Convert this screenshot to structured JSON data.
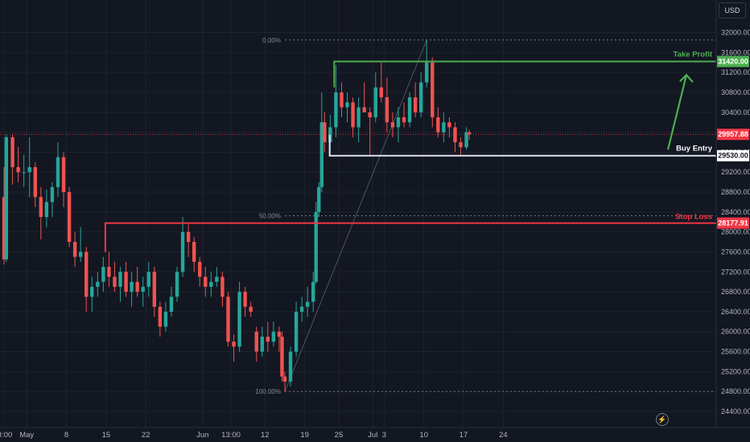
{
  "currency": "USD",
  "icons": {
    "replay": "lightning-icon",
    "arrow": "arrow-up-right-icon"
  },
  "colors": {
    "background": "#131722",
    "grid": "#1e222d",
    "up": "#26a69a",
    "down": "#ef5350",
    "take_profit": "#4caf50",
    "stop_loss": "#f23645",
    "entry": "#ffffff",
    "current": "#f23645",
    "axis_text": "#b2b5be"
  },
  "chart_data": {
    "type": "candlestick",
    "y_axis": {
      "range": [
        24200,
        32400
      ],
      "ticks": [
        24400,
        24800,
        25200,
        25600,
        26000,
        26400,
        26800,
        27200,
        27600,
        28000,
        28400,
        28800,
        29200,
        29600,
        30000,
        30400,
        30800,
        31200,
        31600,
        32000
      ],
      "tick_labels": [
        "24400.00",
        "24800.00",
        "25200.00",
        "25600.00",
        "26000.00",
        "26400.00",
        "26800.00",
        "27200.00",
        "27600.00",
        "28000.00",
        "28400.00",
        "28800.00",
        "29200.00",
        "29600.00",
        "30000.00",
        "30400.00",
        "30800.00",
        "31200.00",
        "31600.00",
        "32000.00"
      ]
    },
    "x_axis": {
      "labels": [
        {
          "label": "3:00",
          "day": 0
        },
        {
          "label": "May",
          "day": 4
        },
        {
          "label": "8",
          "day": 11
        },
        {
          "label": "15",
          "day": 18
        },
        {
          "label": "22",
          "day": 25
        },
        {
          "label": "Jun",
          "day": 35
        },
        {
          "label": "13:00",
          "day": 40
        },
        {
          "label": "12",
          "day": 46
        },
        {
          "label": "19",
          "day": 53
        },
        {
          "label": "25",
          "day": 59
        },
        {
          "label": "Jul",
          "day": 65
        },
        {
          "label": "3",
          "day": 67
        },
        {
          "label": "10",
          "day": 74
        },
        {
          "label": "17",
          "day": 81
        },
        {
          "label": "24",
          "day": 88
        }
      ]
    },
    "candles": [
      {
        "day": 0,
        "open": 28700,
        "high": 29300,
        "low": 27350,
        "close": 27450
      },
      {
        "day": 0.4,
        "open": 27450,
        "high": 29950,
        "low": 27400,
        "close": 29900
      },
      {
        "day": 1.5,
        "open": 29900,
        "high": 29950,
        "low": 28950,
        "close": 29300
      },
      {
        "day": 2.5,
        "open": 29300,
        "high": 29700,
        "low": 29000,
        "close": 29200
      },
      {
        "day": 3.5,
        "open": 29200,
        "high": 29550,
        "low": 28900,
        "close": 29200
      },
      {
        "day": 4.5,
        "open": 29200,
        "high": 29900,
        "low": 28700,
        "close": 29300
      },
      {
        "day": 5.5,
        "open": 29300,
        "high": 29400,
        "low": 28500,
        "close": 28700
      },
      {
        "day": 6.5,
        "open": 28700,
        "high": 28900,
        "low": 27850,
        "close": 28300
      },
      {
        "day": 7.5,
        "open": 28300,
        "high": 28850,
        "low": 28100,
        "close": 28600
      },
      {
        "day": 8.5,
        "open": 28600,
        "high": 29000,
        "low": 28300,
        "close": 28900
      },
      {
        "day": 9.5,
        "open": 28900,
        "high": 29800,
        "low": 28700,
        "close": 29500
      },
      {
        "day": 10.5,
        "open": 29500,
        "high": 29600,
        "low": 28500,
        "close": 28800
      },
      {
        "day": 11.5,
        "open": 28800,
        "high": 28900,
        "low": 27700,
        "close": 27800
      },
      {
        "day": 12.5,
        "open": 27800,
        "high": 28000,
        "low": 27300,
        "close": 27500
      },
      {
        "day": 13.5,
        "open": 27500,
        "high": 28100,
        "low": 27400,
        "close": 27600
      },
      {
        "day": 14.5,
        "open": 27600,
        "high": 27700,
        "low": 26400,
        "close": 26700
      },
      {
        "day": 15.5,
        "open": 26700,
        "high": 27100,
        "low": 26400,
        "close": 26900
      },
      {
        "day": 16.5,
        "open": 26900,
        "high": 27200,
        "low": 26700,
        "close": 27000
      },
      {
        "day": 17.5,
        "open": 27000,
        "high": 27500,
        "low": 26800,
        "close": 27300
      },
      {
        "day": 18.5,
        "open": 27300,
        "high": 27600,
        "low": 26900,
        "close": 27100
      },
      {
        "day": 19.5,
        "open": 27100,
        "high": 27400,
        "low": 26800,
        "close": 26900
      },
      {
        "day": 20.5,
        "open": 26900,
        "high": 27300,
        "low": 26600,
        "close": 27200
      },
      {
        "day": 21.5,
        "open": 27200,
        "high": 27400,
        "low": 26700,
        "close": 26800
      },
      {
        "day": 22.5,
        "open": 26800,
        "high": 27200,
        "low": 26500,
        "close": 27000
      },
      {
        "day": 23.5,
        "open": 27000,
        "high": 27300,
        "low": 26700,
        "close": 26800
      },
      {
        "day": 24.5,
        "open": 26800,
        "high": 27100,
        "low": 26500,
        "close": 26900
      },
      {
        "day": 25.5,
        "open": 26900,
        "high": 27400,
        "low": 26700,
        "close": 27200
      },
      {
        "day": 26.5,
        "open": 27200,
        "high": 27300,
        "low": 26300,
        "close": 26500
      },
      {
        "day": 27.5,
        "open": 26500,
        "high": 26600,
        "low": 25900,
        "close": 26100
      },
      {
        "day": 28.5,
        "open": 26100,
        "high": 26600,
        "low": 26000,
        "close": 26400
      },
      {
        "day": 29.5,
        "open": 26400,
        "high": 26900,
        "low": 26300,
        "close": 26700
      },
      {
        "day": 30.5,
        "open": 26700,
        "high": 27300,
        "low": 26600,
        "close": 27200
      },
      {
        "day": 31.5,
        "open": 27200,
        "high": 28300,
        "low": 27100,
        "close": 28000
      },
      {
        "day": 32.5,
        "open": 28000,
        "high": 28150,
        "low": 27500,
        "close": 27800
      },
      {
        "day": 33.5,
        "open": 27800,
        "high": 27900,
        "low": 27200,
        "close": 27400
      },
      {
        "day": 34.5,
        "open": 27400,
        "high": 27500,
        "low": 26900,
        "close": 27100
      },
      {
        "day": 35.5,
        "open": 27100,
        "high": 27300,
        "low": 26700,
        "close": 26900
      },
      {
        "day": 36.5,
        "open": 26900,
        "high": 27200,
        "low": 26700,
        "close": 27000
      },
      {
        "day": 37.5,
        "open": 27000,
        "high": 27300,
        "low": 26900,
        "close": 27100
      },
      {
        "day": 38.5,
        "open": 27100,
        "high": 27200,
        "low": 26500,
        "close": 26700
      },
      {
        "day": 39.5,
        "open": 26700,
        "high": 26800,
        "low": 25700,
        "close": 25800
      },
      {
        "day": 40.5,
        "open": 25800,
        "high": 25950,
        "low": 25400,
        "close": 25700
      },
      {
        "day": 41.5,
        "open": 25700,
        "high": 27000,
        "low": 25600,
        "close": 26800
      },
      {
        "day": 42.5,
        "open": 26800,
        "high": 26900,
        "low": 26300,
        "close": 26500
      },
      {
        "day": 43.5,
        "open": 26500,
        "high": 26600,
        "low": 26300,
        "close": 26400
      },
      {
        "day": 44.5,
        "open": 26000,
        "high": 26100,
        "low": 25400,
        "close": 25600
      },
      {
        "day": 45.5,
        "open": 25600,
        "high": 26100,
        "low": 25500,
        "close": 25900
      },
      {
        "day": 46.5,
        "open": 25900,
        "high": 26200,
        "low": 25600,
        "close": 25800
      },
      {
        "day": 47.5,
        "open": 25800,
        "high": 26200,
        "low": 25700,
        "close": 26000
      },
      {
        "day": 48.5,
        "open": 26000,
        "high": 26100,
        "low": 25600,
        "close": 25900
      },
      {
        "day": 49.0,
        "open": 25900,
        "high": 26000,
        "low": 25000,
        "close": 25100
      },
      {
        "day": 49.5,
        "open": 25100,
        "high": 25200,
        "low": 24800,
        "close": 25000
      },
      {
        "day": 50.5,
        "open": 25000,
        "high": 25700,
        "low": 24900,
        "close": 25600
      },
      {
        "day": 51.5,
        "open": 25600,
        "high": 26600,
        "low": 25500,
        "close": 26400
      },
      {
        "day": 52.5,
        "open": 26400,
        "high": 26700,
        "low": 26200,
        "close": 26500
      },
      {
        "day": 53.5,
        "open": 26500,
        "high": 26900,
        "low": 26300,
        "close": 26600
      },
      {
        "day": 54.5,
        "open": 26600,
        "high": 27200,
        "low": 26400,
        "close": 27000
      },
      {
        "day": 55.0,
        "open": 27000,
        "high": 28600,
        "low": 26950,
        "close": 28400
      },
      {
        "day": 55.5,
        "open": 28400,
        "high": 29000,
        "low": 28300,
        "close": 28900
      },
      {
        "day": 56.0,
        "open": 28900,
        "high": 30800,
        "low": 28800,
        "close": 30200
      },
      {
        "day": 56.5,
        "open": 30200,
        "high": 30400,
        "low": 29600,
        "close": 29800
      },
      {
        "day": 57.5,
        "open": 29800,
        "high": 30350,
        "low": 29530,
        "close": 30100
      },
      {
        "day": 58.5,
        "open": 30100,
        "high": 31350,
        "low": 29900,
        "close": 30800
      },
      {
        "day": 59.5,
        "open": 30800,
        "high": 31000,
        "low": 30300,
        "close": 30500
      },
      {
        "day": 60.5,
        "open": 30500,
        "high": 30800,
        "low": 30200,
        "close": 30600
      },
      {
        "day": 61.5,
        "open": 30600,
        "high": 30700,
        "low": 29900,
        "close": 30100
      },
      {
        "day": 62.5,
        "open": 30100,
        "high": 30700,
        "low": 29800,
        "close": 30500
      },
      {
        "day": 63.5,
        "open": 30500,
        "high": 31000,
        "low": 30400,
        "close": 30400
      },
      {
        "day": 64.5,
        "open": 30400,
        "high": 30500,
        "low": 29530,
        "close": 30300
      },
      {
        "day": 65.5,
        "open": 30300,
        "high": 31200,
        "low": 30200,
        "close": 30900
      },
      {
        "day": 66.5,
        "open": 30900,
        "high": 31400,
        "low": 30600,
        "close": 30700
      },
      {
        "day": 67.5,
        "open": 30700,
        "high": 31100,
        "low": 30000,
        "close": 30200
      },
      {
        "day": 68.5,
        "open": 30200,
        "high": 30400,
        "low": 29900,
        "close": 30100
      },
      {
        "day": 69.5,
        "open": 30100,
        "high": 30500,
        "low": 29800,
        "close": 30300
      },
      {
        "day": 70.5,
        "open": 30300,
        "high": 30600,
        "low": 30100,
        "close": 30200
      },
      {
        "day": 71.5,
        "open": 30200,
        "high": 30800,
        "low": 30100,
        "close": 30700
      },
      {
        "day": 72.5,
        "open": 30700,
        "high": 31000,
        "low": 30300,
        "close": 30400
      },
      {
        "day": 73.5,
        "open": 30400,
        "high": 31200,
        "low": 30300,
        "close": 31000
      },
      {
        "day": 74.5,
        "open": 31000,
        "high": 31850,
        "low": 30900,
        "close": 31400
      },
      {
        "day": 75.5,
        "open": 31400,
        "high": 31500,
        "low": 30100,
        "close": 30300
      },
      {
        "day": 76.5,
        "open": 30300,
        "high": 30500,
        "low": 29900,
        "close": 30000
      },
      {
        "day": 77.5,
        "open": 30000,
        "high": 30400,
        "low": 29800,
        "close": 30200
      },
      {
        "day": 78.5,
        "open": 30200,
        "high": 30300,
        "low": 29900,
        "close": 30100
      },
      {
        "day": 79.5,
        "open": 30100,
        "high": 30200,
        "low": 29600,
        "close": 29800
      },
      {
        "day": 80.5,
        "open": 29800,
        "high": 29900,
        "low": 29530,
        "close": 29700
      },
      {
        "day": 81.5,
        "open": 29700,
        "high": 30100,
        "low": 29650,
        "close": 30000
      },
      {
        "day": 82.0,
        "open": 30000,
        "high": 30050,
        "low": 29850,
        "close": 29957.88
      }
    ]
  },
  "annotations": {
    "take_profit": {
      "label": "Take Profit",
      "price_tag": "31420.00",
      "price": 31420
    },
    "stop_loss": {
      "label": "Stop Loss",
      "price_tag": "28177.91",
      "price": 28177.91
    },
    "buy_entry": {
      "label": "Buy Entry",
      "price_tag": "29530.00",
      "price": 29530
    },
    "current_price": {
      "price_tag": "29957.88",
      "price": 29957.88
    },
    "fib_0": {
      "label": "0.00%",
      "price": 31850
    },
    "fib_50": {
      "label": "50.00%",
      "price": 28325
    },
    "fib_100": {
      "label": "100.00%",
      "price": 24800
    }
  }
}
